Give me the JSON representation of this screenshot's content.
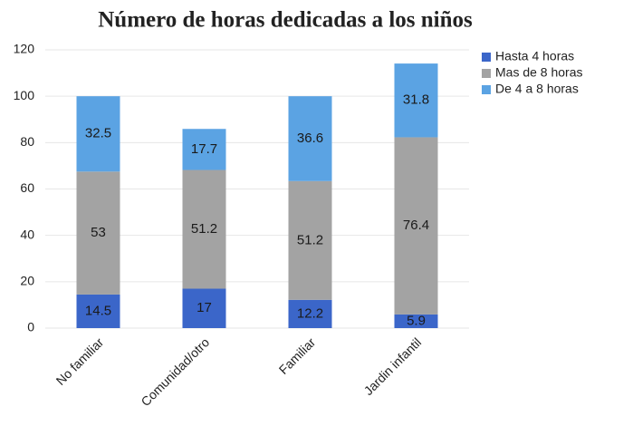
{
  "chart_data": {
    "type": "stacked_bar",
    "title": "Número de horas dedicadas a los niños",
    "categories": [
      "No familiar",
      "Comunidad/otro",
      "Familiar",
      "Jardin infantil"
    ],
    "series": [
      {
        "name": "Hasta 4 horas",
        "color": "#3b66c9",
        "values": [
          14.5,
          17,
          12.2,
          5.9
        ]
      },
      {
        "name": "Mas de 8 horas",
        "color": "#a3a3a3",
        "values": [
          53,
          51.2,
          51.2,
          76.4
        ]
      },
      {
        "name": "De 4 a 8 horas",
        "color": "#5ba3e3",
        "values": [
          32.5,
          17.7,
          36.6,
          31.8
        ]
      }
    ],
    "ylim": [
      0,
      120
    ],
    "yticks": [
      0,
      20,
      40,
      60,
      80,
      100,
      120
    ],
    "grid": true,
    "legend": "right"
  }
}
